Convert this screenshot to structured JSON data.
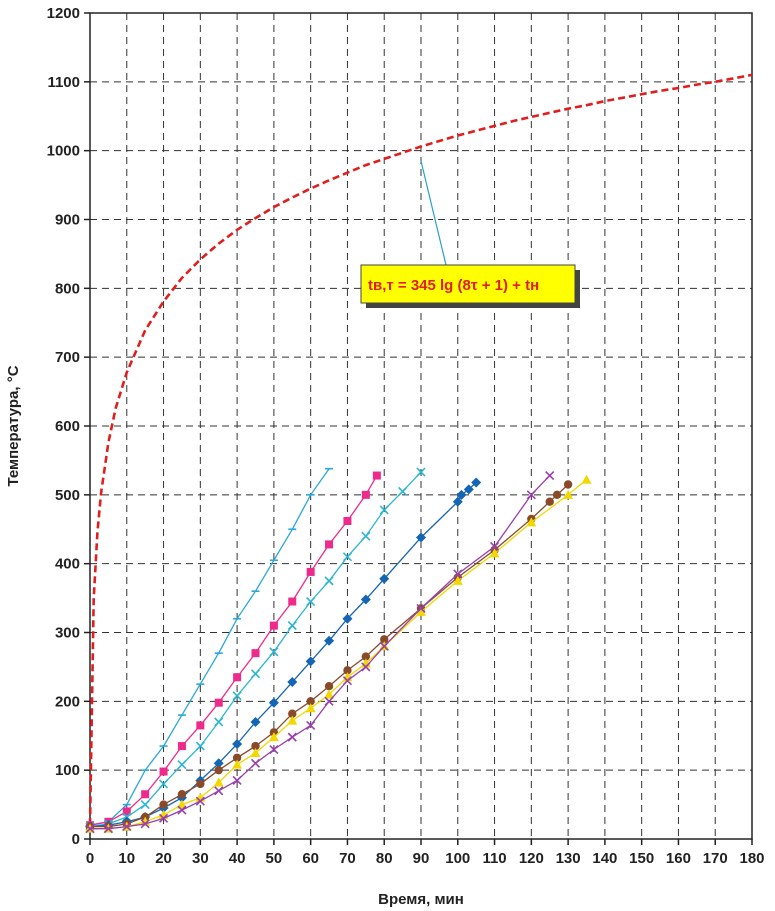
{
  "chart_data": {
    "type": "line",
    "title": "",
    "xlabel": "Время, мин",
    "ylabel": "Температура, °С",
    "xlim": [
      0,
      180
    ],
    "ylim": [
      0,
      1200
    ],
    "xticks": [
      0,
      10,
      20,
      30,
      40,
      50,
      60,
      70,
      80,
      90,
      100,
      110,
      120,
      130,
      140,
      150,
      160,
      170,
      180
    ],
    "yticks": [
      0,
      100,
      200,
      300,
      400,
      500,
      600,
      700,
      800,
      900,
      1000,
      1100,
      1200
    ],
    "grid": true,
    "annotation": {
      "text": "tв,т = 345 lg (8τ + 1) + tн",
      "box_color": "#ffff00",
      "text_color": "#e01e1e",
      "leader_to": {
        "x": 90,
        "y": 985
      }
    },
    "series": [
      {
        "style": "dashed",
        "color": "#e01e1e",
        "marker": "none",
        "points": [
          [
            0,
            20
          ],
          [
            1,
            349
          ],
          [
            2,
            445
          ],
          [
            3,
            502
          ],
          [
            5,
            576
          ],
          [
            7,
            626
          ],
          [
            10,
            678
          ],
          [
            15,
            739
          ],
          [
            20,
            781
          ],
          [
            25,
            815
          ],
          [
            30,
            842
          ],
          [
            35,
            865
          ],
          [
            40,
            885
          ],
          [
            45,
            902
          ],
          [
            50,
            918
          ],
          [
            55,
            932
          ],
          [
            60,
            945
          ],
          [
            65,
            957
          ],
          [
            70,
            968
          ],
          [
            75,
            979
          ],
          [
            80,
            988
          ],
          [
            85,
            997
          ],
          [
            90,
            1006
          ],
          [
            95,
            1014
          ],
          [
            100,
            1022
          ],
          [
            105,
            1029
          ],
          [
            110,
            1036
          ],
          [
            115,
            1043
          ],
          [
            120,
            1049
          ],
          [
            125,
            1055
          ],
          [
            130,
            1061
          ],
          [
            135,
            1066
          ],
          [
            140,
            1072
          ],
          [
            145,
            1077
          ],
          [
            150,
            1082
          ],
          [
            155,
            1087
          ],
          [
            160,
            1091
          ],
          [
            165,
            1096
          ],
          [
            170,
            1100
          ],
          [
            175,
            1105
          ],
          [
            180,
            1110
          ]
        ]
      },
      {
        "style": "solid",
        "color": "#2aa7d8",
        "marker": "dash",
        "points": [
          [
            0,
            20
          ],
          [
            5,
            25
          ],
          [
            10,
            50
          ],
          [
            15,
            100
          ],
          [
            20,
            135
          ],
          [
            25,
            180
          ],
          [
            30,
            225
          ],
          [
            35,
            270
          ],
          [
            40,
            320
          ],
          [
            45,
            360
          ],
          [
            50,
            405
          ],
          [
            55,
            450
          ],
          [
            60,
            500
          ],
          [
            65,
            538
          ]
        ]
      },
      {
        "style": "solid",
        "color": "#ee2a8c",
        "marker": "square",
        "points": [
          [
            0,
            20
          ],
          [
            5,
            25
          ],
          [
            10,
            40
          ],
          [
            15,
            65
          ],
          [
            20,
            98
          ],
          [
            25,
            135
          ],
          [
            30,
            165
          ],
          [
            35,
            198
          ],
          [
            40,
            235
          ],
          [
            45,
            270
          ],
          [
            50,
            310
          ],
          [
            55,
            345
          ],
          [
            60,
            388
          ],
          [
            65,
            428
          ],
          [
            70,
            462
          ],
          [
            75,
            500
          ],
          [
            78,
            528
          ]
        ]
      },
      {
        "style": "solid",
        "color": "#2ab6d0",
        "marker": "x",
        "points": [
          [
            0,
            18
          ],
          [
            5,
            22
          ],
          [
            10,
            32
          ],
          [
            15,
            50
          ],
          [
            20,
            80
          ],
          [
            25,
            108
          ],
          [
            30,
            135
          ],
          [
            35,
            170
          ],
          [
            40,
            208
          ],
          [
            45,
            240
          ],
          [
            50,
            272
          ],
          [
            55,
            310
          ],
          [
            60,
            345
          ],
          [
            65,
            375
          ],
          [
            70,
            410
          ],
          [
            75,
            440
          ],
          [
            80,
            478
          ],
          [
            85,
            505
          ],
          [
            90,
            533
          ]
        ]
      },
      {
        "style": "solid",
        "color": "#1565b5",
        "marker": "diamond",
        "points": [
          [
            0,
            18
          ],
          [
            5,
            20
          ],
          [
            10,
            25
          ],
          [
            15,
            32
          ],
          [
            20,
            45
          ],
          [
            25,
            60
          ],
          [
            30,
            85
          ],
          [
            35,
            110
          ],
          [
            40,
            138
          ],
          [
            45,
            170
          ],
          [
            50,
            198
          ],
          [
            55,
            228
          ],
          [
            60,
            258
          ],
          [
            65,
            288
          ],
          [
            70,
            320
          ],
          [
            75,
            348
          ],
          [
            80,
            378
          ],
          [
            90,
            438
          ],
          [
            100,
            490
          ],
          [
            101,
            500
          ],
          [
            103,
            508
          ],
          [
            105,
            518
          ]
        ]
      },
      {
        "style": "solid",
        "color": "#8a4a2a",
        "marker": "circle",
        "points": [
          [
            0,
            18
          ],
          [
            5,
            18
          ],
          [
            10,
            22
          ],
          [
            15,
            32
          ],
          [
            20,
            50
          ],
          [
            25,
            65
          ],
          [
            30,
            80
          ],
          [
            35,
            100
          ],
          [
            40,
            118
          ],
          [
            45,
            135
          ],
          [
            50,
            155
          ],
          [
            55,
            182
          ],
          [
            60,
            200
          ],
          [
            65,
            222
          ],
          [
            70,
            245
          ],
          [
            75,
            265
          ],
          [
            80,
            290
          ],
          [
            90,
            335
          ],
          [
            100,
            380
          ],
          [
            110,
            420
          ],
          [
            120,
            465
          ],
          [
            125,
            490
          ],
          [
            127,
            500
          ],
          [
            130,
            515
          ]
        ]
      },
      {
        "style": "solid",
        "color": "#f0d800",
        "marker": "triangle",
        "points": [
          [
            0,
            15
          ],
          [
            5,
            15
          ],
          [
            10,
            18
          ],
          [
            15,
            25
          ],
          [
            20,
            35
          ],
          [
            25,
            50
          ],
          [
            30,
            60
          ],
          [
            35,
            82
          ],
          [
            40,
            108
          ],
          [
            45,
            125
          ],
          [
            50,
            148
          ],
          [
            55,
            172
          ],
          [
            60,
            190
          ],
          [
            65,
            210
          ],
          [
            70,
            235
          ],
          [
            75,
            255
          ],
          [
            80,
            280
          ],
          [
            90,
            330
          ],
          [
            100,
            375
          ],
          [
            110,
            415
          ],
          [
            120,
            460
          ],
          [
            130,
            500
          ],
          [
            135,
            522
          ]
        ]
      },
      {
        "style": "solid",
        "color": "#9a3fae",
        "marker": "x",
        "points": [
          [
            0,
            15
          ],
          [
            5,
            15
          ],
          [
            10,
            18
          ],
          [
            15,
            22
          ],
          [
            20,
            30
          ],
          [
            25,
            42
          ],
          [
            30,
            55
          ],
          [
            35,
            70
          ],
          [
            40,
            85
          ],
          [
            45,
            110
          ],
          [
            50,
            130
          ],
          [
            55,
            148
          ],
          [
            60,
            165
          ],
          [
            65,
            200
          ],
          [
            70,
            230
          ],
          [
            75,
            250
          ],
          [
            80,
            280
          ],
          [
            90,
            335
          ],
          [
            100,
            385
          ],
          [
            110,
            425
          ],
          [
            120,
            500
          ],
          [
            125,
            528
          ]
        ]
      }
    ]
  }
}
